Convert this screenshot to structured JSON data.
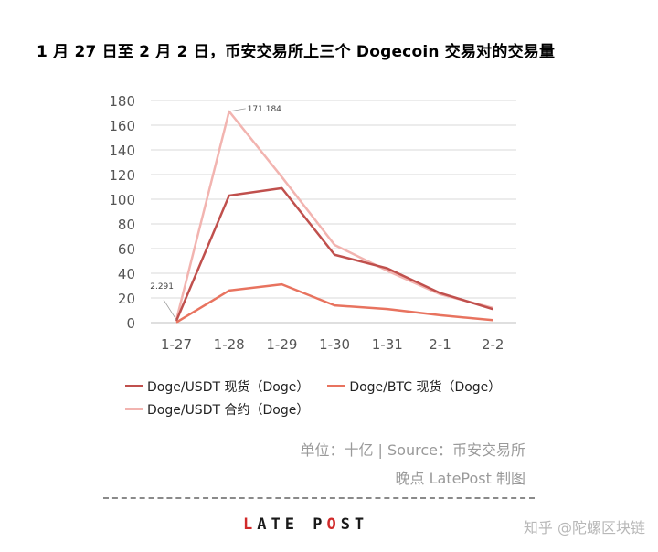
{
  "title": "1 月 27 日至 2 月 2 日，币安交易所上三个 Dogecoin 交易对的交易量",
  "chart_data": {
    "type": "line",
    "categories": [
      "1-27",
      "1-28",
      "1-29",
      "1-30",
      "1-31",
      "2-1",
      "2-2"
    ],
    "ylim": [
      0,
      180
    ],
    "yticks": [
      0,
      20,
      40,
      60,
      80,
      100,
      120,
      140,
      160,
      180
    ],
    "grid": true,
    "legend_position": "bottom-left",
    "series": [
      {
        "name": "Doge/USDT 现货（Doge）",
        "color": "#c0504d",
        "values": [
          1.5,
          103,
          109,
          55,
          44,
          24,
          11
        ]
      },
      {
        "name": "Doge/BTC 现货（Doge）",
        "color": "#e8735f",
        "values": [
          0.2,
          26,
          31,
          14,
          11,
          6,
          2
        ]
      },
      {
        "name": "Doge/USDT 合约（Doge）",
        "color": "#f2b4b0",
        "values": [
          2.291,
          171.184,
          118,
          63,
          42,
          23,
          12
        ]
      }
    ],
    "annotations": [
      {
        "text": "2.291",
        "series": 2,
        "index": 0
      },
      {
        "text": "171.184",
        "series": 2,
        "index": 1
      }
    ]
  },
  "footer": {
    "unit": "单位：十亿 | Source：币安交易所",
    "credit": "晚点 LatePost 制图",
    "brand_red": "L",
    "brand_rest_1": "ATE P",
    "brand_red_2": "O",
    "brand_rest_2": "ST",
    "watermark": "知乎 @陀螺区块链"
  }
}
